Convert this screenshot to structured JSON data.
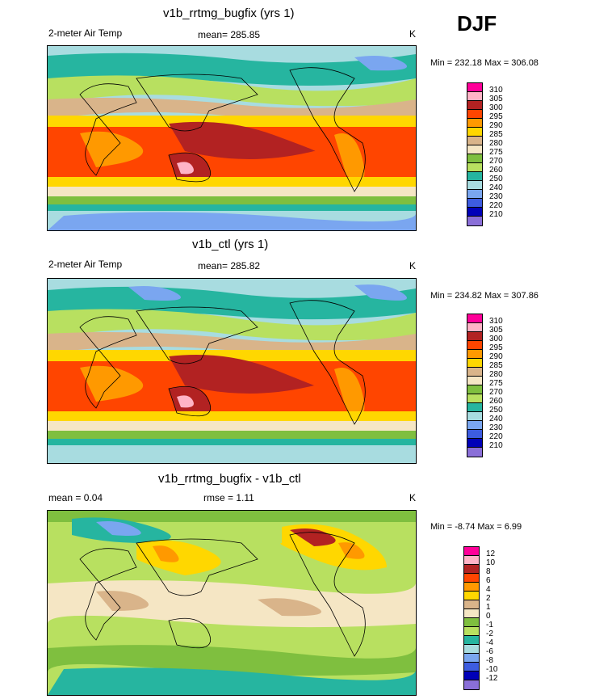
{
  "season": "DJF",
  "panels": [
    {
      "title": "v1b_rrtmg_bugfix (yrs 1)",
      "left_label": "2-meter Air Temp",
      "mean_label": "mean= 285.85",
      "unit": "K",
      "minmax": "Min = 232.18  Max = 306.08",
      "legend_labels": [
        "310",
        "305",
        "300",
        "295",
        "290",
        "285",
        "280",
        "275",
        "270",
        "260",
        "250",
        "240",
        "230",
        "220",
        "210"
      ]
    },
    {
      "title": "v1b_ctl (yrs 1)",
      "left_label": "2-meter Air Temp",
      "mean_label": "mean= 285.82",
      "unit": "K",
      "minmax": "Min = 234.82  Max = 307.86",
      "legend_labels": [
        "310",
        "305",
        "300",
        "295",
        "290",
        "285",
        "280",
        "275",
        "270",
        "260",
        "250",
        "240",
        "230",
        "220",
        "210"
      ]
    },
    {
      "title": "v1b_rrtmg_bugfix - v1b_ctl",
      "left_label": "mean =   0.04",
      "mean_label": "rmse =   1.11",
      "unit": "K",
      "minmax": "Min =  -8.74  Max =   6.99",
      "legend_labels": [
        "12",
        "10",
        "8",
        "6",
        "4",
        "2",
        "1",
        "0",
        "-1",
        "-2",
        "-4",
        "-6",
        "-8",
        "-10",
        "-12"
      ]
    }
  ],
  "colors": {
    "abs_scale": [
      "#ff0099",
      "#ffb3c6",
      "#b22222",
      "#ff4500",
      "#ff9900",
      "#ffd700",
      "#d9b48a",
      "#f5e6c4",
      "#7fbf3f",
      "#b8e060",
      "#26b5a0",
      "#a8dce0",
      "#7aa6f0",
      "#3d5ce0",
      "#0000b8",
      "#8a6fd8"
    ],
    "diff_scale": [
      "#ff0099",
      "#ffb3c6",
      "#b22222",
      "#ff4500",
      "#ff9900",
      "#ffd700",
      "#d9b48a",
      "#f5e6c4",
      "#7fbf3f",
      "#b8e060",
      "#26b5a0",
      "#a8dce0",
      "#7aa6f0",
      "#3d5ce0",
      "#0000b8",
      "#8a6fd8"
    ]
  }
}
